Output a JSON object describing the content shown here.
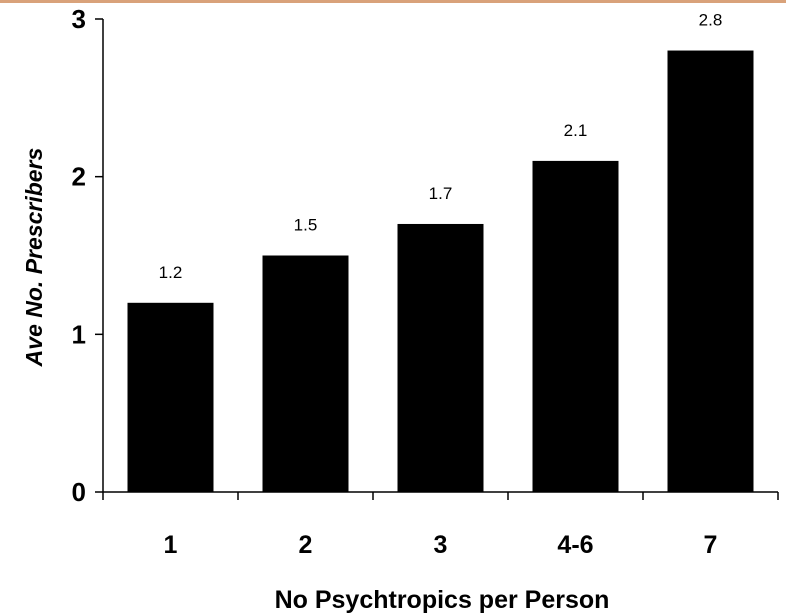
{
  "colors": {
    "bar": "#000000",
    "axis": "#000000",
    "top_rule": "#d9a27a",
    "background": "#ffffff"
  },
  "chart_data": {
    "type": "bar",
    "categories": [
      "1",
      "2",
      "3",
      "4-6",
      "7"
    ],
    "values": [
      1.2,
      1.5,
      1.7,
      2.1,
      2.8
    ],
    "data_labels": [
      "1.2",
      "1.5",
      "1.7",
      "2.1",
      "2.8"
    ],
    "xlabel": "No Psychtropics per Person",
    "ylabel": "Ave No. Prescribers",
    "ylim": [
      0,
      3
    ],
    "yticks": [
      0,
      1,
      2,
      3
    ],
    "ytick_labels": [
      "0",
      "1",
      "2",
      "3"
    ],
    "grid": false,
    "legend": "none"
  }
}
